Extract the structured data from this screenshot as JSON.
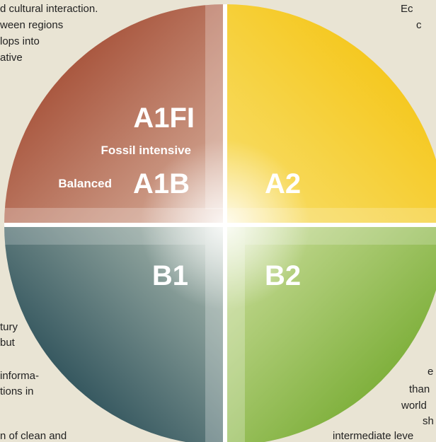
{
  "fragments": {
    "top_left": [
      "d cultural interaction.",
      "ween regions",
      "lops into",
      "ative"
    ],
    "top_right": [
      "Ec",
      "c"
    ],
    "bottom_left": [
      "tury",
      "but",
      "informa-",
      "tions in",
      "n of clean and"
    ],
    "bottom_right": [
      "e",
      "than",
      "world",
      "sh",
      "intermediate leve"
    ]
  },
  "quadrants": {
    "a1fi": {
      "label": "A1FI",
      "sublabel": "Fossil intensive"
    },
    "a1b": {
      "label": "A1B",
      "sublabel": "Balanced"
    },
    "a2": {
      "label": "A2"
    },
    "b1": {
      "label": "B1"
    },
    "b2": {
      "label": "B2"
    }
  }
}
